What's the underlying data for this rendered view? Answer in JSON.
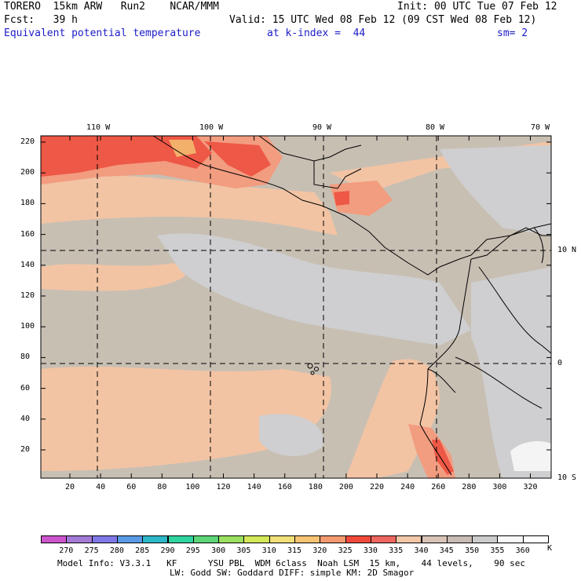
{
  "header": {
    "line1_left": "TORERO  15km ARW   Run2    NCAR/MMM",
    "line1_right": "Init: 00 UTC Tue 07 Feb 12",
    "line2_left": "Fcst:   39 h",
    "line2_right": "Valid: 15 UTC Wed 08 Feb 12 (09 CST Wed 08 Feb 12)",
    "line3_field": "Equivalent potential temperature",
    "line3_level": "at k-index =  44",
    "line3_sm": "sm= 2"
  },
  "map": {
    "lon_labels": [
      "110 W",
      "100 W",
      "90 W",
      "80 W",
      "70 W"
    ],
    "lat_labels": [
      "10 N",
      "0",
      "10 S"
    ],
    "y_ticks": [
      "220",
      "200",
      "180",
      "160",
      "140",
      "120",
      "100",
      "80",
      "60",
      "40",
      "20"
    ],
    "x_ticks": [
      "20",
      "40",
      "60",
      "80",
      "100",
      "120",
      "140",
      "160",
      "180",
      "200",
      "220",
      "240",
      "260",
      "280",
      "300",
      "320"
    ],
    "colors": {
      "base": "#c8bfb3",
      "gray_light": "#cfcfd1",
      "peach": "#f2c4a4",
      "salmon": "#f29c80",
      "red": "#ee5846",
      "orange": "#f3b06a",
      "white_patch": "#f4f4f4"
    }
  },
  "colorbar": {
    "unit": "K",
    "labels": [
      "270",
      "275",
      "280",
      "285",
      "290",
      "295",
      "300",
      "305",
      "310",
      "315",
      "320",
      "325",
      "330",
      "335",
      "340",
      "345",
      "350",
      "355",
      "360"
    ],
    "colors": [
      "#cc55cc",
      "#a37ad6",
      "#7f78e8",
      "#5a9ae6",
      "#2cb8c6",
      "#30d4a0",
      "#5ed678",
      "#9be060",
      "#d4e85a",
      "#f1e07a",
      "#f6c474",
      "#f39a70",
      "#f04a3c",
      "#ee6660",
      "#f2c8a8",
      "#d8c4b6",
      "#c8bcb4",
      "#cccccc",
      "#f8f8f8",
      "#ffffff"
    ]
  },
  "footer": {
    "line1": "Model Info: V3.3.1   KF      YSU PBL  WDM 6class  Noah LSM  15 km,    44 levels,    90 sec",
    "line2": "LW: Godd SW: Goddard DIFF: simple KM: 2D Smagor"
  }
}
